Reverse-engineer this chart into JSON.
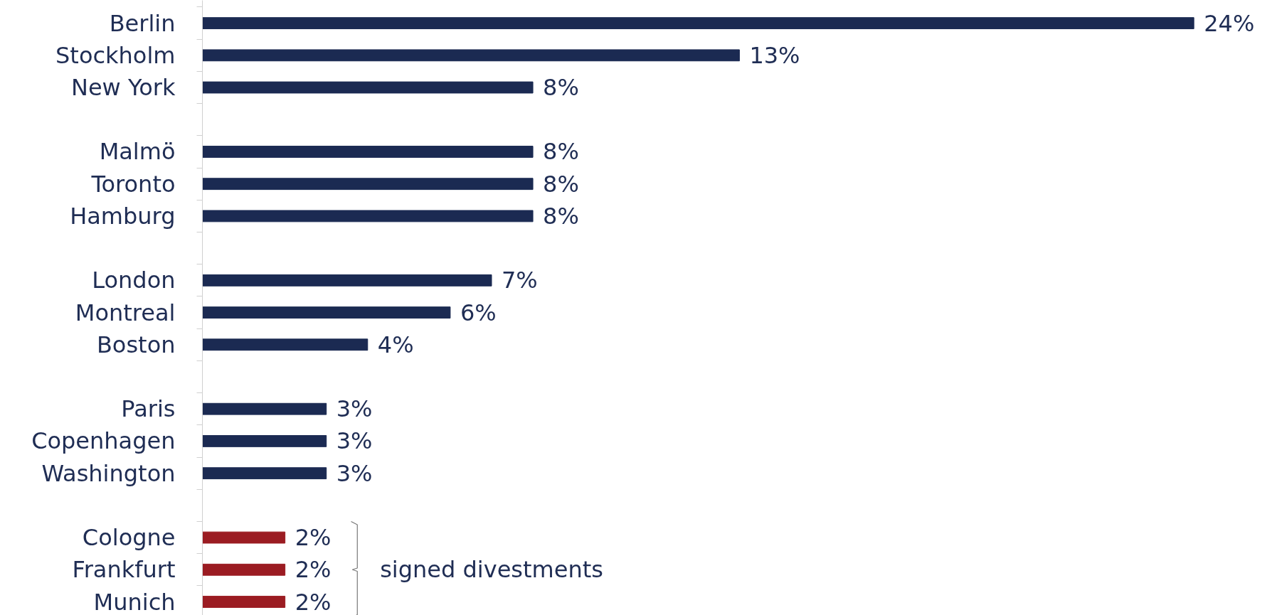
{
  "chart_data": {
    "type": "bar",
    "orientation": "horizontal",
    "categories": [
      "Berlin",
      "Stockholm",
      "New York",
      null,
      "Malmö",
      "Toronto",
      "Hamburg",
      null,
      "London",
      "Montreal",
      "Boston",
      null,
      "Paris",
      "Copenhagen",
      "Washington",
      null,
      "Cologne",
      "Frankfurt",
      "Munich"
    ],
    "values": [
      24,
      13,
      8,
      null,
      8,
      8,
      8,
      null,
      7,
      6,
      4,
      null,
      3,
      3,
      3,
      null,
      2,
      2,
      2
    ],
    "value_labels": [
      "24%",
      "13%",
      "8%",
      null,
      "8%",
      "8%",
      "8%",
      null,
      "7%",
      "6%",
      "4%",
      null,
      "3%",
      "3%",
      "3%",
      null,
      "2%",
      "2%",
      "2%"
    ],
    "colors": [
      "#1b2a52",
      "#1b2a52",
      "#1b2a52",
      null,
      "#1b2a52",
      "#1b2a52",
      "#1b2a52",
      null,
      "#1b2a52",
      "#1b2a52",
      "#1b2a52",
      null,
      "#1b2a52",
      "#1b2a52",
      "#1b2a52",
      null,
      "#9b1c22",
      "#9b1c22",
      "#9b1c22"
    ],
    "annotations": [
      "signed divestments"
    ],
    "grid": false
  }
}
